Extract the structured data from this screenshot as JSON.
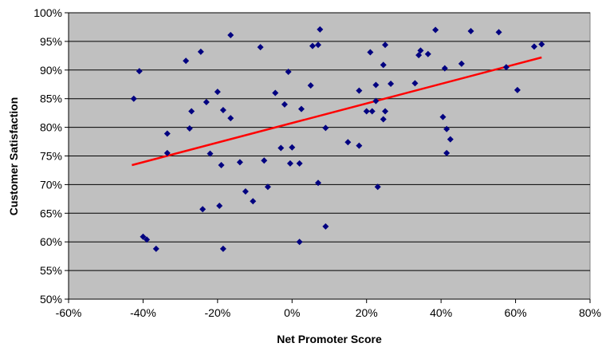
{
  "chart_data": {
    "type": "scatter",
    "xlabel": "Net Promoter Score",
    "ylabel": "Customer Satisfaction",
    "xlim": [
      -60,
      80
    ],
    "ylim": [
      50,
      100
    ],
    "x_ticks": [
      -60,
      -40,
      -20,
      0,
      20,
      40,
      60,
      80
    ],
    "y_ticks": [
      50,
      55,
      60,
      65,
      70,
      75,
      80,
      85,
      90,
      95,
      100
    ],
    "x_tick_labels": [
      "-60%",
      "-40%",
      "-20%",
      "0%",
      "20%",
      "40%",
      "60%",
      "80%"
    ],
    "y_tick_labels": [
      "50%",
      "55%",
      "60%",
      "65%",
      "70%",
      "75%",
      "80%",
      "85%",
      "90%",
      "95%",
      "100%"
    ],
    "grid": "horizontal",
    "legend": "none",
    "colors": {
      "plot_background": "#c0c0c0",
      "marker": "#000080",
      "trendline": "#ff0000",
      "gridline": "#000000"
    },
    "points": [
      {
        "x": -42.5,
        "y": 85.0
      },
      {
        "x": -41.0,
        "y": 89.8
      },
      {
        "x": -40.0,
        "y": 60.9
      },
      {
        "x": -39.0,
        "y": 60.4
      },
      {
        "x": -36.5,
        "y": 58.8
      },
      {
        "x": -33.5,
        "y": 78.9
      },
      {
        "x": -33.5,
        "y": 75.5
      },
      {
        "x": -28.5,
        "y": 91.6
      },
      {
        "x": -27.5,
        "y": 79.8
      },
      {
        "x": -27.0,
        "y": 82.8
      },
      {
        "x": -24.5,
        "y": 93.2
      },
      {
        "x": -24.0,
        "y": 65.7
      },
      {
        "x": -23.0,
        "y": 84.4
      },
      {
        "x": -22.0,
        "y": 75.4
      },
      {
        "x": -20.0,
        "y": 86.2
      },
      {
        "x": -19.5,
        "y": 66.3
      },
      {
        "x": -18.5,
        "y": 83.0
      },
      {
        "x": -19.0,
        "y": 73.4
      },
      {
        "x": -18.5,
        "y": 58.8
      },
      {
        "x": -16.5,
        "y": 81.6
      },
      {
        "x": -16.5,
        "y": 96.1
      },
      {
        "x": -14.0,
        "y": 73.9
      },
      {
        "x": -12.5,
        "y": 68.8
      },
      {
        "x": -10.5,
        "y": 67.1
      },
      {
        "x": -8.5,
        "y": 94.0
      },
      {
        "x": -7.5,
        "y": 74.2
      },
      {
        "x": -6.5,
        "y": 69.6
      },
      {
        "x": -4.5,
        "y": 86.0
      },
      {
        "x": -3.0,
        "y": 76.4
      },
      {
        "x": -2.0,
        "y": 84.0
      },
      {
        "x": -1.0,
        "y": 89.7
      },
      {
        "x": -0.5,
        "y": 73.7
      },
      {
        "x": 0.0,
        "y": 76.5
      },
      {
        "x": 2.0,
        "y": 73.7
      },
      {
        "x": 2.0,
        "y": 60.0
      },
      {
        "x": 2.5,
        "y": 83.2
      },
      {
        "x": 5.0,
        "y": 87.3
      },
      {
        "x": 5.5,
        "y": 94.2
      },
      {
        "x": 7.0,
        "y": 94.4
      },
      {
        "x": 7.0,
        "y": 70.3
      },
      {
        "x": 7.5,
        "y": 97.1
      },
      {
        "x": 9.0,
        "y": 79.9
      },
      {
        "x": 9.0,
        "y": 62.7
      },
      {
        "x": 15.0,
        "y": 77.4
      },
      {
        "x": 18.0,
        "y": 86.4
      },
      {
        "x": 18.0,
        "y": 76.8
      },
      {
        "x": 20.0,
        "y": 82.8
      },
      {
        "x": 21.0,
        "y": 93.1
      },
      {
        "x": 21.5,
        "y": 82.8
      },
      {
        "x": 22.5,
        "y": 84.6
      },
      {
        "x": 22.5,
        "y": 87.4
      },
      {
        "x": 23.0,
        "y": 69.6
      },
      {
        "x": 24.5,
        "y": 90.9
      },
      {
        "x": 25.0,
        "y": 94.4
      },
      {
        "x": 24.5,
        "y": 81.4
      },
      {
        "x": 25.0,
        "y": 82.8
      },
      {
        "x": 26.5,
        "y": 87.6
      },
      {
        "x": 33.0,
        "y": 87.7
      },
      {
        "x": 34.0,
        "y": 92.6
      },
      {
        "x": 34.5,
        "y": 93.4
      },
      {
        "x": 36.5,
        "y": 92.8
      },
      {
        "x": 38.5,
        "y": 97.0
      },
      {
        "x": 40.5,
        "y": 81.8
      },
      {
        "x": 41.0,
        "y": 90.3
      },
      {
        "x": 41.5,
        "y": 79.7
      },
      {
        "x": 41.5,
        "y": 75.5
      },
      {
        "x": 42.5,
        "y": 77.9
      },
      {
        "x": 45.5,
        "y": 91.1
      },
      {
        "x": 48.0,
        "y": 96.8
      },
      {
        "x": 55.5,
        "y": 96.6
      },
      {
        "x": 57.5,
        "y": 90.5
      },
      {
        "x": 60.5,
        "y": 86.5
      },
      {
        "x": 65.0,
        "y": 94.1
      },
      {
        "x": 67.0,
        "y": 94.5
      }
    ],
    "trendline": {
      "x": [
        -43,
        67
      ],
      "y": [
        73.4,
        92.2
      ]
    }
  }
}
